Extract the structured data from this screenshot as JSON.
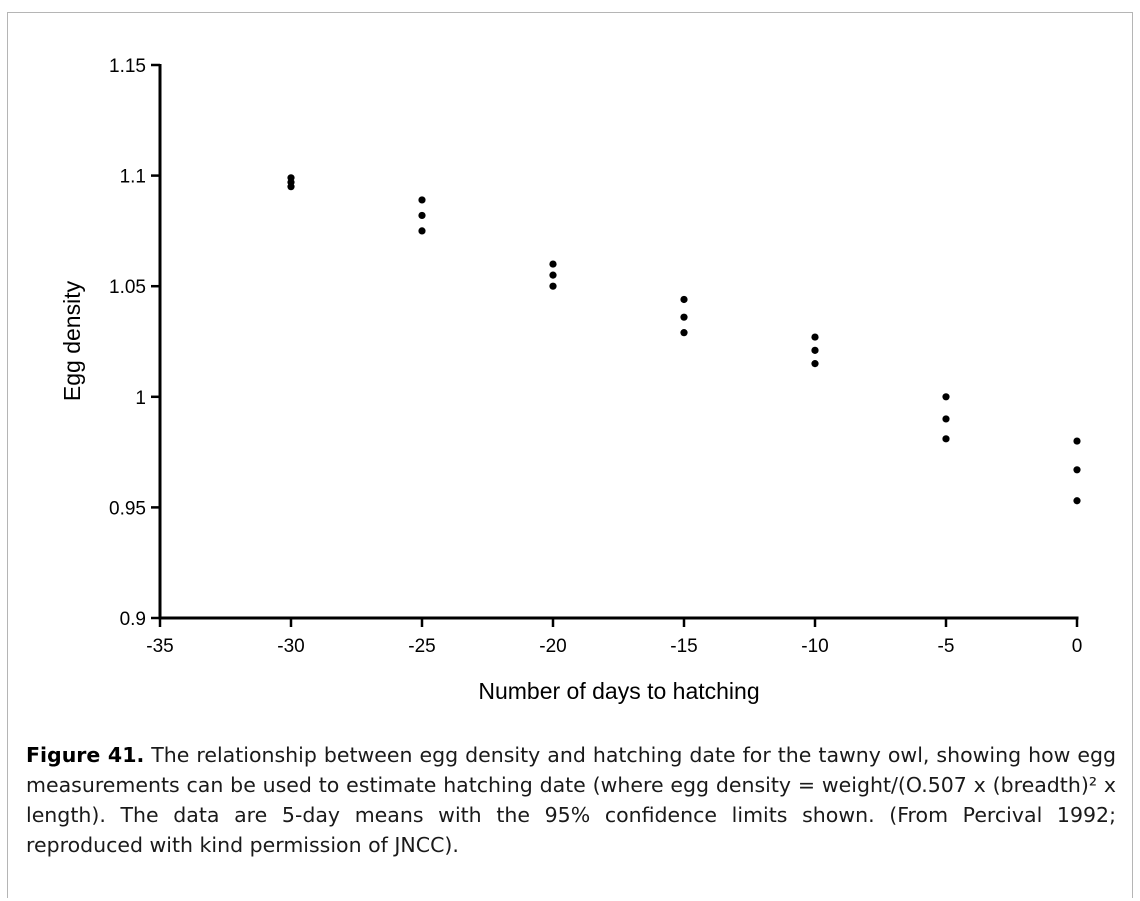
{
  "chart_data": {
    "type": "scatter",
    "xlabel": "Number of days to hatching",
    "ylabel": "Egg density",
    "xlim": [
      -35,
      0
    ],
    "ylim": [
      0.9,
      1.15
    ],
    "xticks": [
      "-35",
      "-30",
      "-25",
      "-20",
      "-15",
      "-10",
      "-5",
      "0"
    ],
    "yticks": [
      "1.15",
      "1.1",
      "1.05",
      "1",
      "0.95",
      "0.9"
    ],
    "grid": false,
    "legend": "none",
    "points": [
      {
        "x": -30,
        "y": 1.099
      },
      {
        "x": -30,
        "y": 1.097
      },
      {
        "x": -30,
        "y": 1.095
      },
      {
        "x": -25,
        "y": 1.089
      },
      {
        "x": -25,
        "y": 1.082
      },
      {
        "x": -25,
        "y": 1.075
      },
      {
        "x": -20,
        "y": 1.06
      },
      {
        "x": -20,
        "y": 1.055
      },
      {
        "x": -20,
        "y": 1.05
      },
      {
        "x": -15,
        "y": 1.044
      },
      {
        "x": -15,
        "y": 1.036
      },
      {
        "x": -15,
        "y": 1.029
      },
      {
        "x": -10,
        "y": 1.027
      },
      {
        "x": -10,
        "y": 1.021
      },
      {
        "x": -10,
        "y": 1.015
      },
      {
        "x": -5,
        "y": 1.0
      },
      {
        "x": -5,
        "y": 0.99
      },
      {
        "x": -5,
        "y": 0.981
      },
      {
        "x": 0,
        "y": 0.98
      },
      {
        "x": 0,
        "y": 0.967
      },
      {
        "x": 0,
        "y": 0.953
      }
    ],
    "marker_color": "#000000"
  },
  "caption": {
    "label": "Figure 41.",
    "text": " The relationship between egg density and hatching date for the tawny owl, showing how egg measurements can be used to estimate hatching date (where egg density = weight/(O.507 x (breadth)² x length). The data are 5-day means with the 95% confidence limits shown. (From Percival 1992; reproduced with kind permission of JNCC)."
  }
}
